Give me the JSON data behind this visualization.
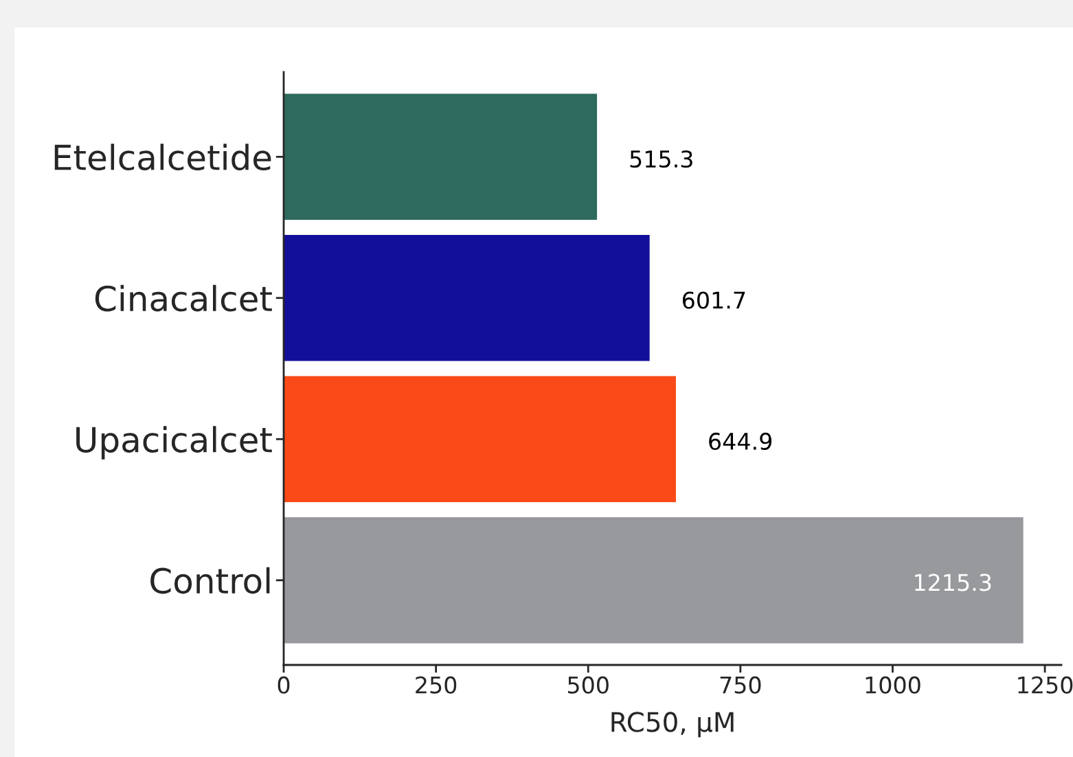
{
  "chart_data": {
    "type": "bar",
    "orientation": "horizontal",
    "xlabel": "RC50, µM",
    "categories": [
      "Etelcalcetide",
      "Cinacalcet",
      "Upacicalcet",
      "Control"
    ],
    "values": [
      515.3,
      601.7,
      644.9,
      1215.3
    ],
    "colors": [
      "#2e6a5e",
      "#12109a",
      "#fa4a17",
      "#98999d"
    ],
    "data_labels": true,
    "xlim": [
      0,
      1277
    ],
    "xticks": [
      0,
      250,
      500,
      750,
      1000,
      1250
    ],
    "grid": false,
    "legend": false
  }
}
